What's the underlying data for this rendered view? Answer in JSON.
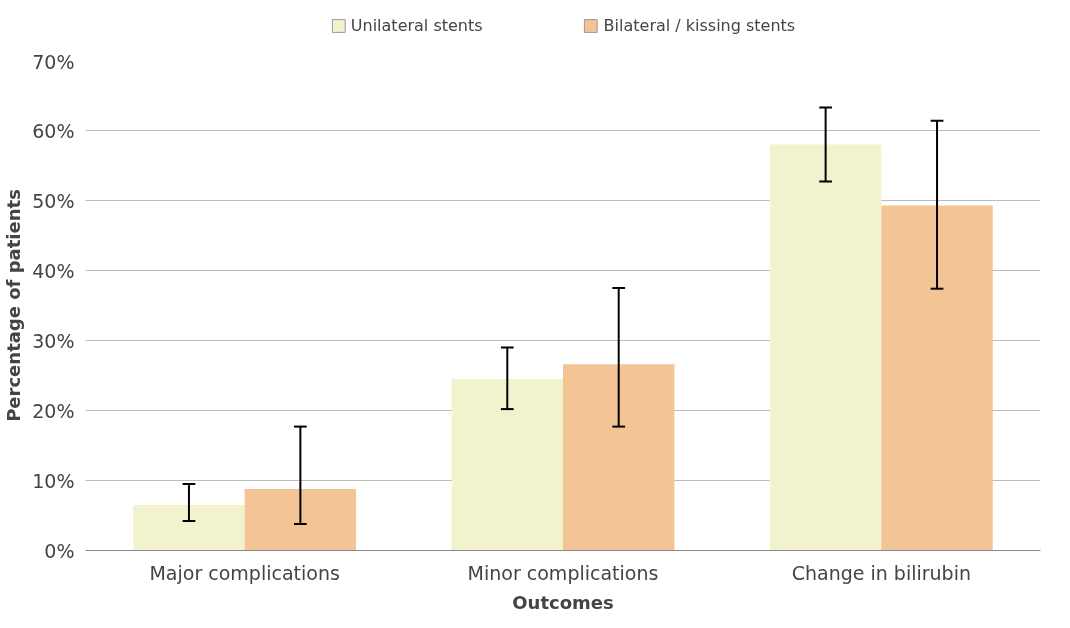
{
  "chart_data": {
    "type": "bar",
    "xlabel": "Outcomes",
    "ylabel": "Percentage of patients",
    "categories": [
      "Major complications",
      "Minor complications",
      "Change in bilirubin"
    ],
    "series": [
      {
        "name": "Unilateral stents",
        "color": "#f2f2cc",
        "values": [
          6.5,
          24.5,
          58
        ],
        "errors": [
          [
            4.2,
            9.5
          ],
          [
            20.2,
            29
          ],
          [
            52.7,
            63.3
          ]
        ]
      },
      {
        "name": "Bilateral / kissing stents",
        "color": "#f3c495",
        "values": [
          8.8,
          26.6,
          49.3
        ],
        "errors": [
          [
            3.8,
            17.7
          ],
          [
            17.7,
            37.5
          ],
          [
            37.4,
            61.4
          ]
        ]
      }
    ],
    "ylim": [
      0,
      70
    ],
    "yticks": [
      {
        "value": 0,
        "label": "0%"
      },
      {
        "value": 10,
        "label": "10%"
      },
      {
        "value": 20,
        "label": "20%"
      },
      {
        "value": 30,
        "label": "30%"
      },
      {
        "value": 40,
        "label": "40%"
      },
      {
        "value": 50,
        "label": "50%"
      },
      {
        "value": 60,
        "label": "60%"
      },
      {
        "value": 70,
        "label": "70%"
      }
    ],
    "grid": "y",
    "legend": "top"
  }
}
